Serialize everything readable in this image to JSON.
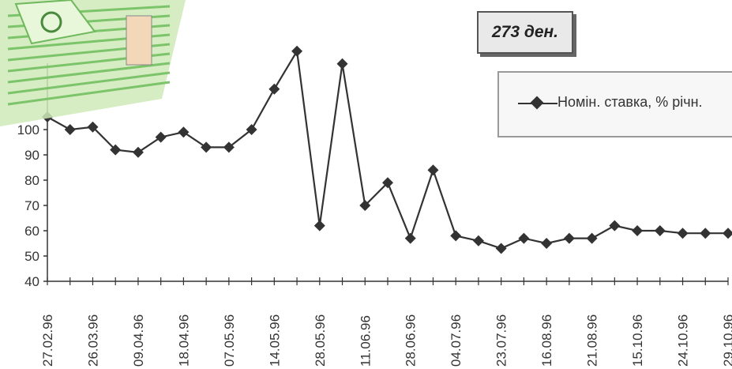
{
  "chart_data": {
    "type": "line",
    "title": "273 ден.",
    "series": [
      {
        "name": "Номін. ставка, % річн.",
        "values": [
          105,
          100,
          101,
          92,
          91,
          97,
          99,
          93,
          93,
          100,
          116,
          131,
          62,
          126,
          70,
          79,
          57,
          84,
          58,
          56,
          53,
          57,
          55,
          57,
          57,
          62,
          60,
          60,
          59,
          59,
          59
        ]
      }
    ],
    "x_tick_labels": [
      "27.02.96",
      "26.03.96",
      "09.04.96",
      "18.04.96",
      "07.05.96",
      "14.05.96",
      "28.05.96",
      "11.06.96",
      "28.06.96",
      "04.07.96",
      "23.07.96",
      "16.08.96",
      "21.08.96",
      "15.10.96",
      "24.10.96",
      "29.10.96"
    ],
    "y_ticks": [
      40,
      50,
      60,
      70,
      80,
      90,
      100
    ],
    "ylim": [
      40,
      130
    ],
    "grid": false,
    "legend_position": "top-right",
    "color": "#333333"
  }
}
